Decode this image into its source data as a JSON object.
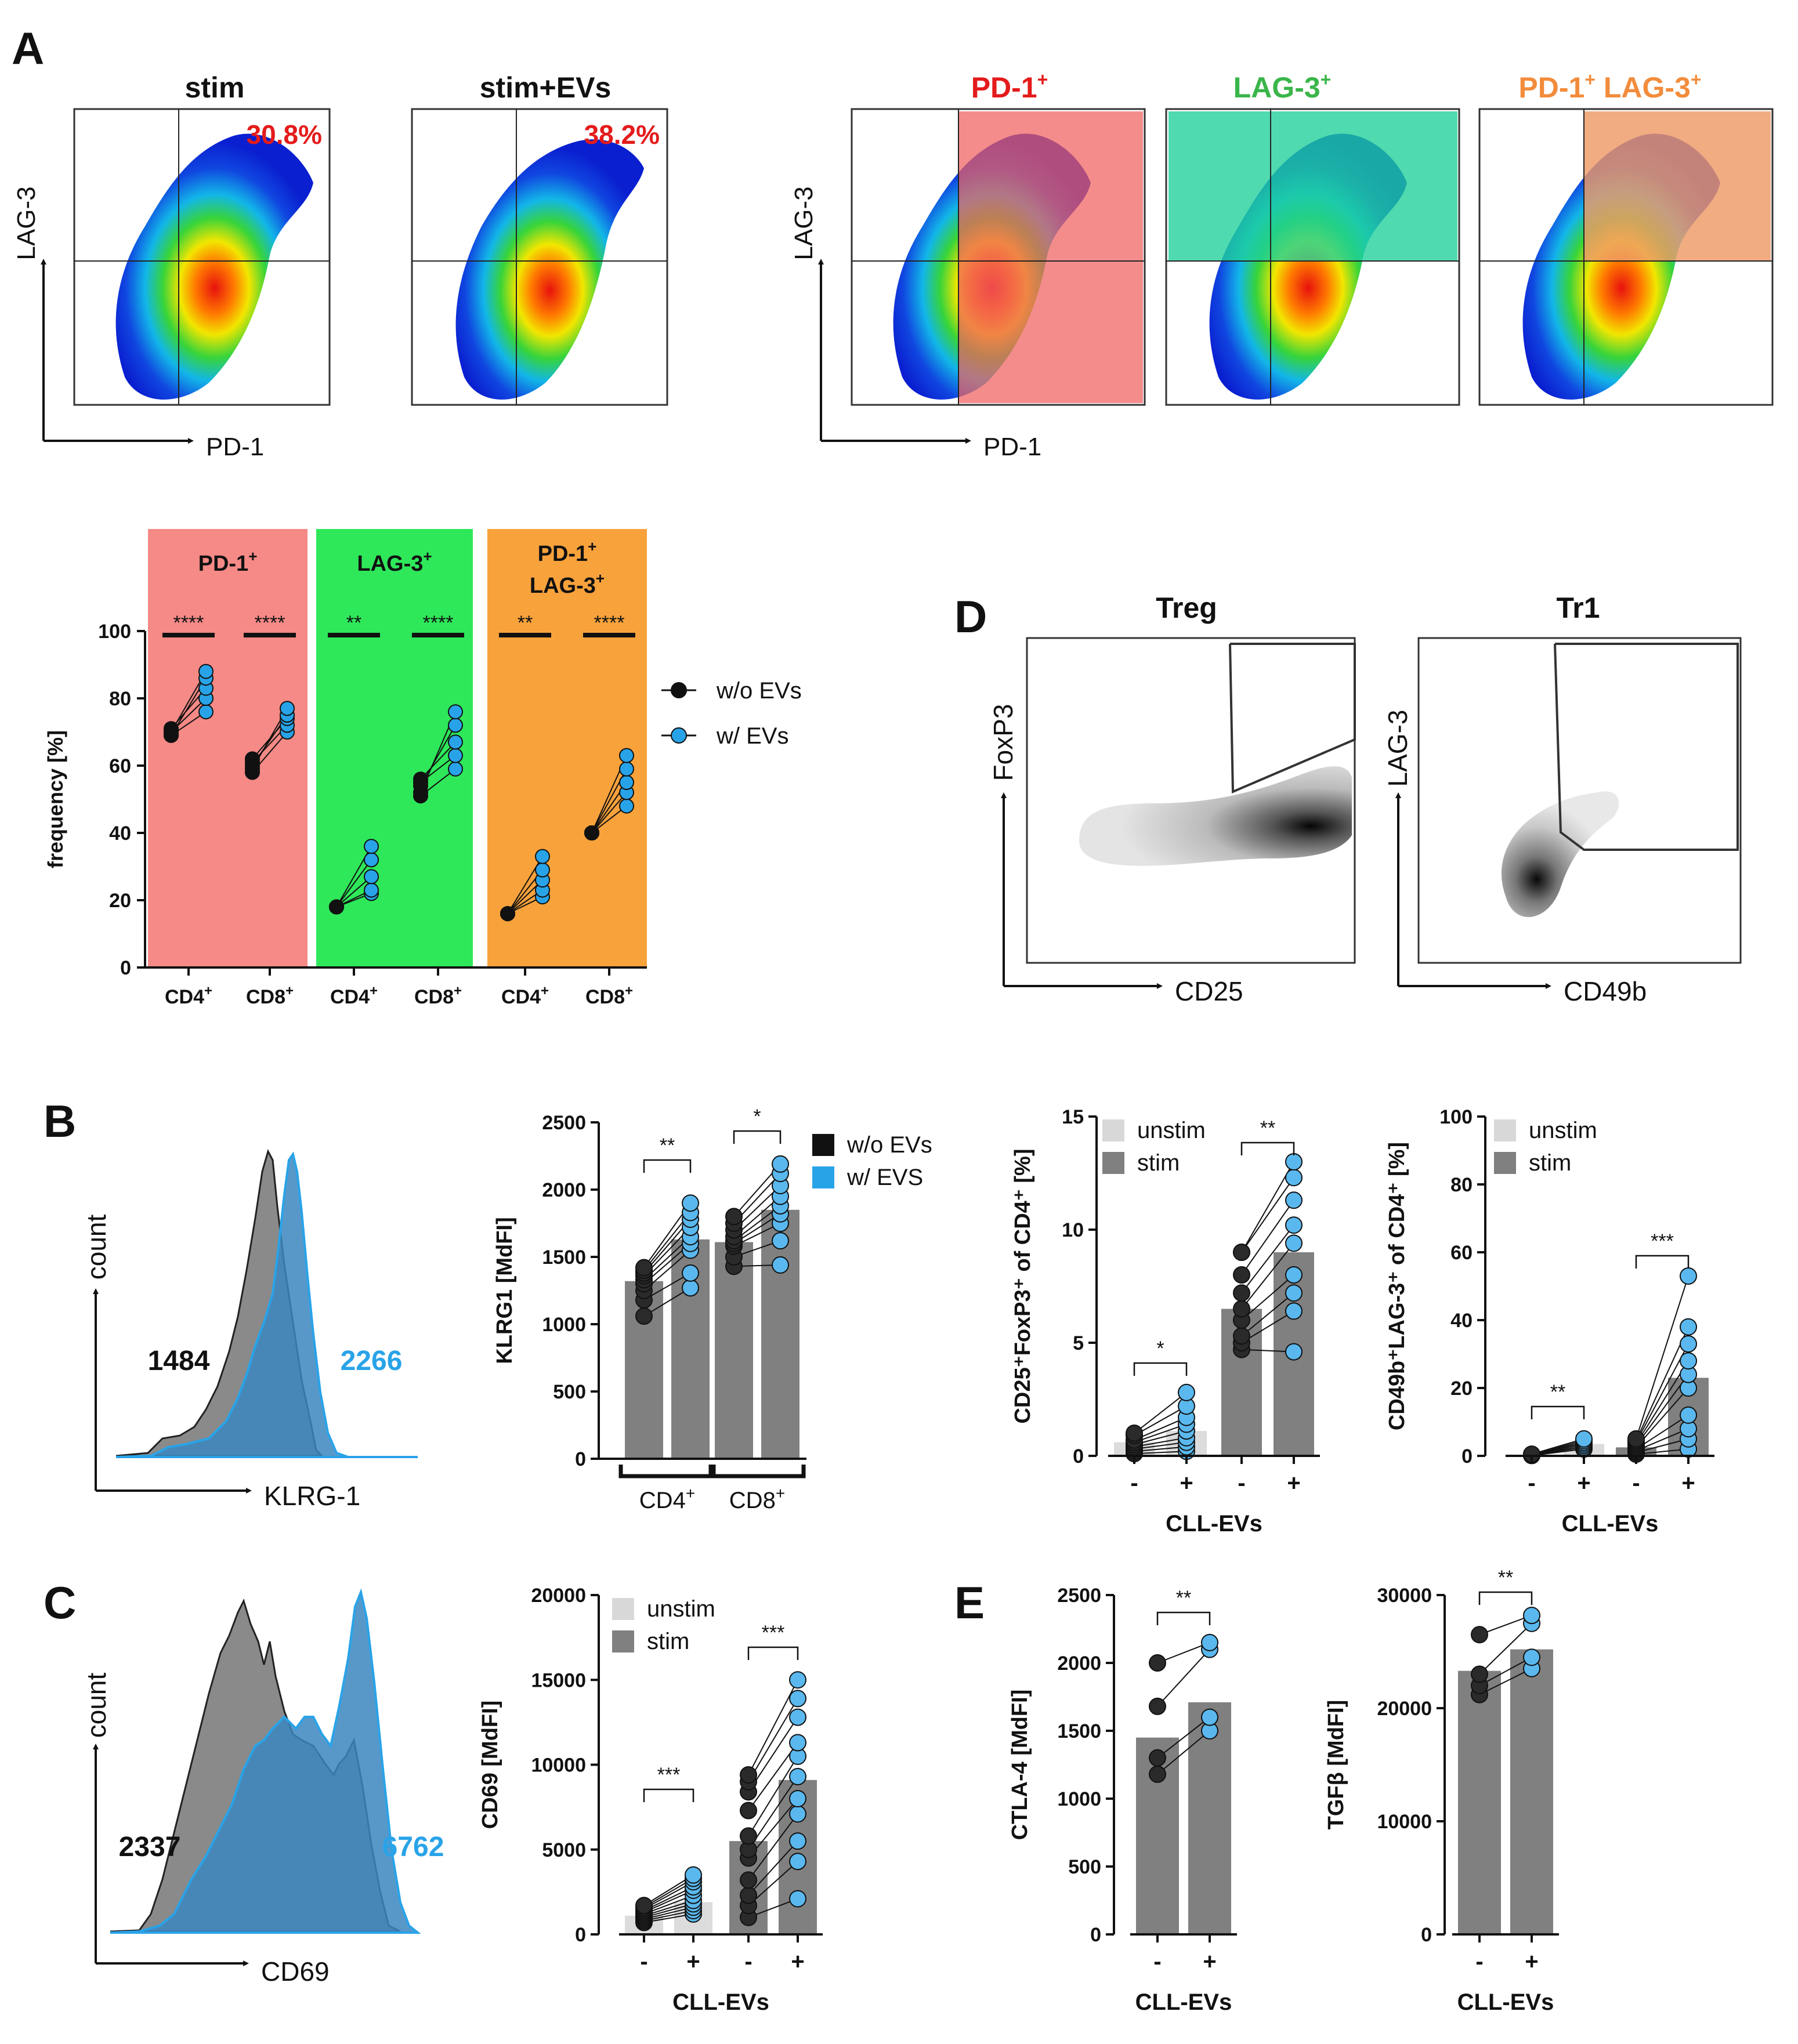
{
  "panels": {
    "A": {
      "letter": "A",
      "dotplots": [
        {
          "title": "stim",
          "pct": "30.8%"
        },
        {
          "title": "stim+EVs",
          "pct": "38.2%"
        }
      ],
      "gates": [
        {
          "title": "PD-1",
          "sup": "+",
          "color": "#f06060"
        },
        {
          "title": "LAG-3",
          "sup": "+",
          "color": "#1fcf9a"
        },
        {
          "title": "PD-1",
          "sup": "+",
          "title2": " LAG-3",
          "sup2": "+",
          "color": "#ee9a66"
        }
      ],
      "xaxis": "PD-1",
      "yaxis": "LAG-3",
      "freq_chart": {
        "ylabel": "frequency [%]",
        "legend": [
          {
            "label": "w/o EVs",
            "color": "#111111"
          },
          {
            "label": "w/ EVs",
            "color": "#29a3e8"
          }
        ],
        "groups": [
          {
            "title": "PD-1",
            "sup": "+",
            "title2": "",
            "sup2": "",
            "bg": "#f58a86",
            "stars": [
              "****",
              "****"
            ]
          },
          {
            "title": "LAG-3",
            "sup": "+",
            "title2": "",
            "sup2": "",
            "bg": "#2ee85a",
            "stars": [
              "**",
              "****"
            ]
          },
          {
            "title": "PD-1",
            "sup": "+",
            "title2": "LAG-3",
            "sup2": "+",
            "bg": "#f8a23c",
            "stars": [
              "**",
              "****"
            ]
          }
        ],
        "xticks": [
          "CD4",
          "CD8",
          "CD4",
          "CD8",
          "CD4",
          "CD8"
        ],
        "xtick_sup": "+",
        "yticks": [
          "0",
          "20",
          "40",
          "60",
          "80",
          "100"
        ]
      }
    },
    "B": {
      "letter": "B",
      "hist": {
        "xlabel": "KLRG-1",
        "ylabel": "count",
        "val_gray": "1484",
        "val_blue": "2266"
      },
      "chart": {
        "ylabel": "KLRG1 [MdFI]",
        "yticks": [
          "0",
          "500",
          "1000",
          "1500",
          "2000",
          "2500"
        ],
        "groups": [
          "CD4",
          "CD8"
        ],
        "group_sup": "+",
        "stars": [
          "**",
          "*"
        ],
        "legend": [
          {
            "label": "w/o EVs",
            "color": "#111111"
          },
          {
            "label": "w/ EVS",
            "color": "#29a3e8"
          }
        ]
      }
    },
    "C": {
      "letter": "C",
      "hist": {
        "xlabel": "CD69",
        "ylabel": "count",
        "val_gray": "2337",
        "val_blue": "6762"
      },
      "chart": {
        "ylabel": "CD69 [MdFI]",
        "yticks": [
          "0",
          "5000",
          "10000",
          "15000",
          "20000"
        ],
        "xticks": [
          "-",
          "+",
          "-",
          "+"
        ],
        "xlabel": "CLL-EVs",
        "stars": [
          "***",
          "***"
        ],
        "legend": [
          {
            "label": "unstim",
            "color": "#d8d8d8"
          },
          {
            "label": "stim",
            "color": "#808080"
          }
        ]
      }
    },
    "D": {
      "letter": "D",
      "treg": {
        "title": "Treg",
        "xlabel": "CD25",
        "ylabel": "FoxP3"
      },
      "tr1": {
        "title": "Tr1",
        "xlabel": "CD49b",
        "ylabel": "LAG-3"
      },
      "chart1": {
        "ylabel": "CD25⁺FoxP3⁺ of  CD4⁺ [%]",
        "yticks": [
          "0",
          "5",
          "10",
          "15"
        ],
        "xticks": [
          "-",
          "+",
          "-",
          "+"
        ],
        "xlabel": "CLL-EVs",
        "stars": [
          "*",
          "**"
        ],
        "legend": [
          {
            "label": "unstim",
            "color": "#d8d8d8"
          },
          {
            "label": "stim",
            "color": "#808080"
          }
        ]
      },
      "chart2": {
        "ylabel": "CD49b⁺LAG-3⁺ of  CD4⁺ [%]",
        "yticks": [
          "0",
          "20",
          "40",
          "60",
          "80",
          "100"
        ],
        "xticks": [
          "-",
          "+",
          "-",
          "+"
        ],
        "xlabel": "CLL-EVs",
        "stars": [
          "**",
          "***"
        ],
        "legend": [
          {
            "label": "unstim",
            "color": "#d8d8d8"
          },
          {
            "label": "stim",
            "color": "#808080"
          }
        ]
      }
    },
    "E": {
      "letter": "E",
      "chart1": {
        "ylabel": "CTLA-4 [MdFI]",
        "yticks": [
          "0",
          "500",
          "1000",
          "1500",
          "2000",
          "2500"
        ],
        "xticks": [
          "-",
          "+"
        ],
        "xlabel": "CLL-EVs",
        "stars": [
          "**"
        ]
      },
      "chart2": {
        "ylabel": "TGFβ [MdFI]",
        "yticks": [
          "0",
          "10000",
          "20000",
          "30000"
        ],
        "xticks": [
          "-",
          "+"
        ],
        "xlabel": "CLL-EVs",
        "stars": [
          "**"
        ]
      }
    }
  },
  "chart_data": [
    {
      "id": "A-frequency",
      "type": "scatter",
      "title": "",
      "ylabel": "frequency [%]",
      "ylim": [
        0,
        100
      ],
      "categories": [
        "PD-1+ CD4+",
        "PD-1+ CD8+",
        "LAG-3+ CD4+",
        "LAG-3+ CD8+",
        "PD-1+LAG-3+ CD4+",
        "PD-1+LAG-3+ CD8+"
      ],
      "series": [
        {
          "name": "w/o EVs",
          "color": "#111111",
          "values": [
            [
              69,
              70,
              71,
              69,
              70
            ],
            [
              58,
              61,
              62,
              60,
              59
            ],
            [
              18,
              18,
              18,
              18,
              18
            ],
            [
              51,
              55,
              56,
              54,
              52
            ],
            [
              16,
              16,
              16,
              16,
              16
            ],
            [
              40,
              40,
              40,
              40,
              40
            ]
          ]
        },
        {
          "name": "w/ EVs",
          "color": "#29a3e8",
          "values": [
            [
              76,
              80,
              83,
              86,
              88
            ],
            [
              70,
              72,
              74,
              75,
              77
            ],
            [
              22,
              23,
              27,
              32,
              36
            ],
            [
              59,
              63,
              67,
              72,
              76
            ],
            [
              21,
              23,
              26,
              29,
              33
            ],
            [
              48,
              52,
              55,
              59,
              63
            ]
          ]
        }
      ]
    },
    {
      "id": "B-KLRG1",
      "type": "bar",
      "ylabel": "KLRG1 [MdFI]",
      "ylim": [
        0,
        2500
      ],
      "categories": [
        "CD4+ w/o EVs",
        "CD4+ w/ EVs",
        "CD8+ w/o EVs",
        "CD8+ w/ EVs"
      ],
      "values": [
        1320,
        1630,
        1610,
        1850
      ],
      "points": [
        [
          1060,
          1180,
          1250,
          1300,
          1330,
          1360,
          1380,
          1400,
          1420
        ],
        [
          1270,
          1380,
          1550,
          1600,
          1650,
          1720,
          1780,
          1830,
          1900
        ],
        [
          1430,
          1500,
          1580,
          1600,
          1620,
          1650,
          1700,
          1750,
          1800
        ],
        [
          1440,
          1620,
          1750,
          1820,
          1880,
          1950,
          2030,
          2120,
          2190
        ]
      ]
    },
    {
      "id": "C-CD69",
      "type": "bar",
      "ylabel": "CD69 [MdFI]",
      "ylim": [
        0,
        20000
      ],
      "xlabel": "CLL-EVs",
      "categories": [
        "unstim -",
        "unstim +",
        "stim -",
        "stim +"
      ],
      "values": [
        1100,
        1900,
        5500,
        9100
      ],
      "points": [
        [
          700,
          800,
          900,
          1000,
          1100,
          1200,
          1300,
          1400,
          1500,
          1600,
          1700
        ],
        [
          1200,
          1400,
          1600,
          1800,
          2000,
          2300,
          2600,
          2800,
          3100,
          3300,
          3500
        ],
        [
          1000,
          1700,
          2300,
          3200,
          4500,
          5000,
          5800,
          7300,
          8400,
          9000,
          9400
        ],
        [
          2100,
          4300,
          5500,
          7100,
          8000,
          9300,
          10500,
          11300,
          12800,
          13900,
          15000
        ]
      ]
    },
    {
      "id": "D-CD25FoxP3",
      "type": "bar",
      "ylabel": "CD25+FoxP3+ of CD4+ [%]",
      "ylim": [
        0,
        15
      ],
      "xlabel": "CLL-EVs",
      "categories": [
        "unstim -",
        "unstim +",
        "stim -",
        "stim +"
      ],
      "values": [
        0.6,
        1.1,
        6.5,
        9.0
      ],
      "points": [
        [
          0.1,
          0.2,
          0.3,
          0.4,
          0.5,
          0.6,
          0.7,
          0.9,
          1.0
        ],
        [
          0.2,
          0.4,
          0.6,
          0.8,
          1.1,
          1.4,
          1.7,
          2.2,
          2.8
        ],
        [
          4.7,
          5.0,
          5.3,
          6.0,
          6.5,
          7.2,
          8.0,
          9.0,
          9.0
        ],
        [
          4.6,
          6.4,
          7.2,
          8.0,
          9.4,
          10.2,
          11.3,
          12.3,
          13.0
        ]
      ]
    },
    {
      "id": "D-CD49bLAG3",
      "type": "bar",
      "ylabel": "CD49b+LAG-3+ of CD4+ [%]",
      "ylim": [
        0,
        100
      ],
      "xlabel": "CLL-EVs",
      "categories": [
        "unstim -",
        "unstim +",
        "stim -",
        "stim +"
      ],
      "values": [
        0.3,
        3.5,
        2.5,
        23
      ],
      "points": [
        [
          0.1,
          0.2,
          0.2,
          0.3,
          0.3,
          0.4,
          0.5
        ],
        [
          2.0,
          2.5,
          3.0,
          3.5,
          4.0,
          4.5,
          5.0
        ],
        [
          0.5,
          1.0,
          1.5,
          2.0,
          2.5,
          3.0,
          3.5,
          4.0,
          4.5,
          5.0
        ],
        [
          2,
          5,
          8,
          12,
          20,
          24,
          28,
          33,
          38,
          53
        ]
      ]
    },
    {
      "id": "E-CTLA4",
      "type": "bar",
      "ylabel": "CTLA-4 [MdFI]",
      "ylim": [
        0,
        2500
      ],
      "xlabel": "CLL-EVs",
      "categories": [
        "-",
        "+"
      ],
      "values": [
        1450,
        1710
      ],
      "points": [
        [
          1180,
          1300,
          1680,
          2000
        ],
        [
          1500,
          1600,
          2100,
          2150
        ]
      ]
    },
    {
      "id": "E-TGFb",
      "type": "bar",
      "ylabel": "TGFβ [MdFI]",
      "ylim": [
        0,
        30000
      ],
      "xlabel": "CLL-EVs",
      "categories": [
        "-",
        "+"
      ],
      "values": [
        23300,
        25200
      ],
      "points": [
        [
          21200,
          22000,
          23000,
          26500
        ],
        [
          23500,
          24500,
          27500,
          28200
        ]
      ]
    }
  ]
}
